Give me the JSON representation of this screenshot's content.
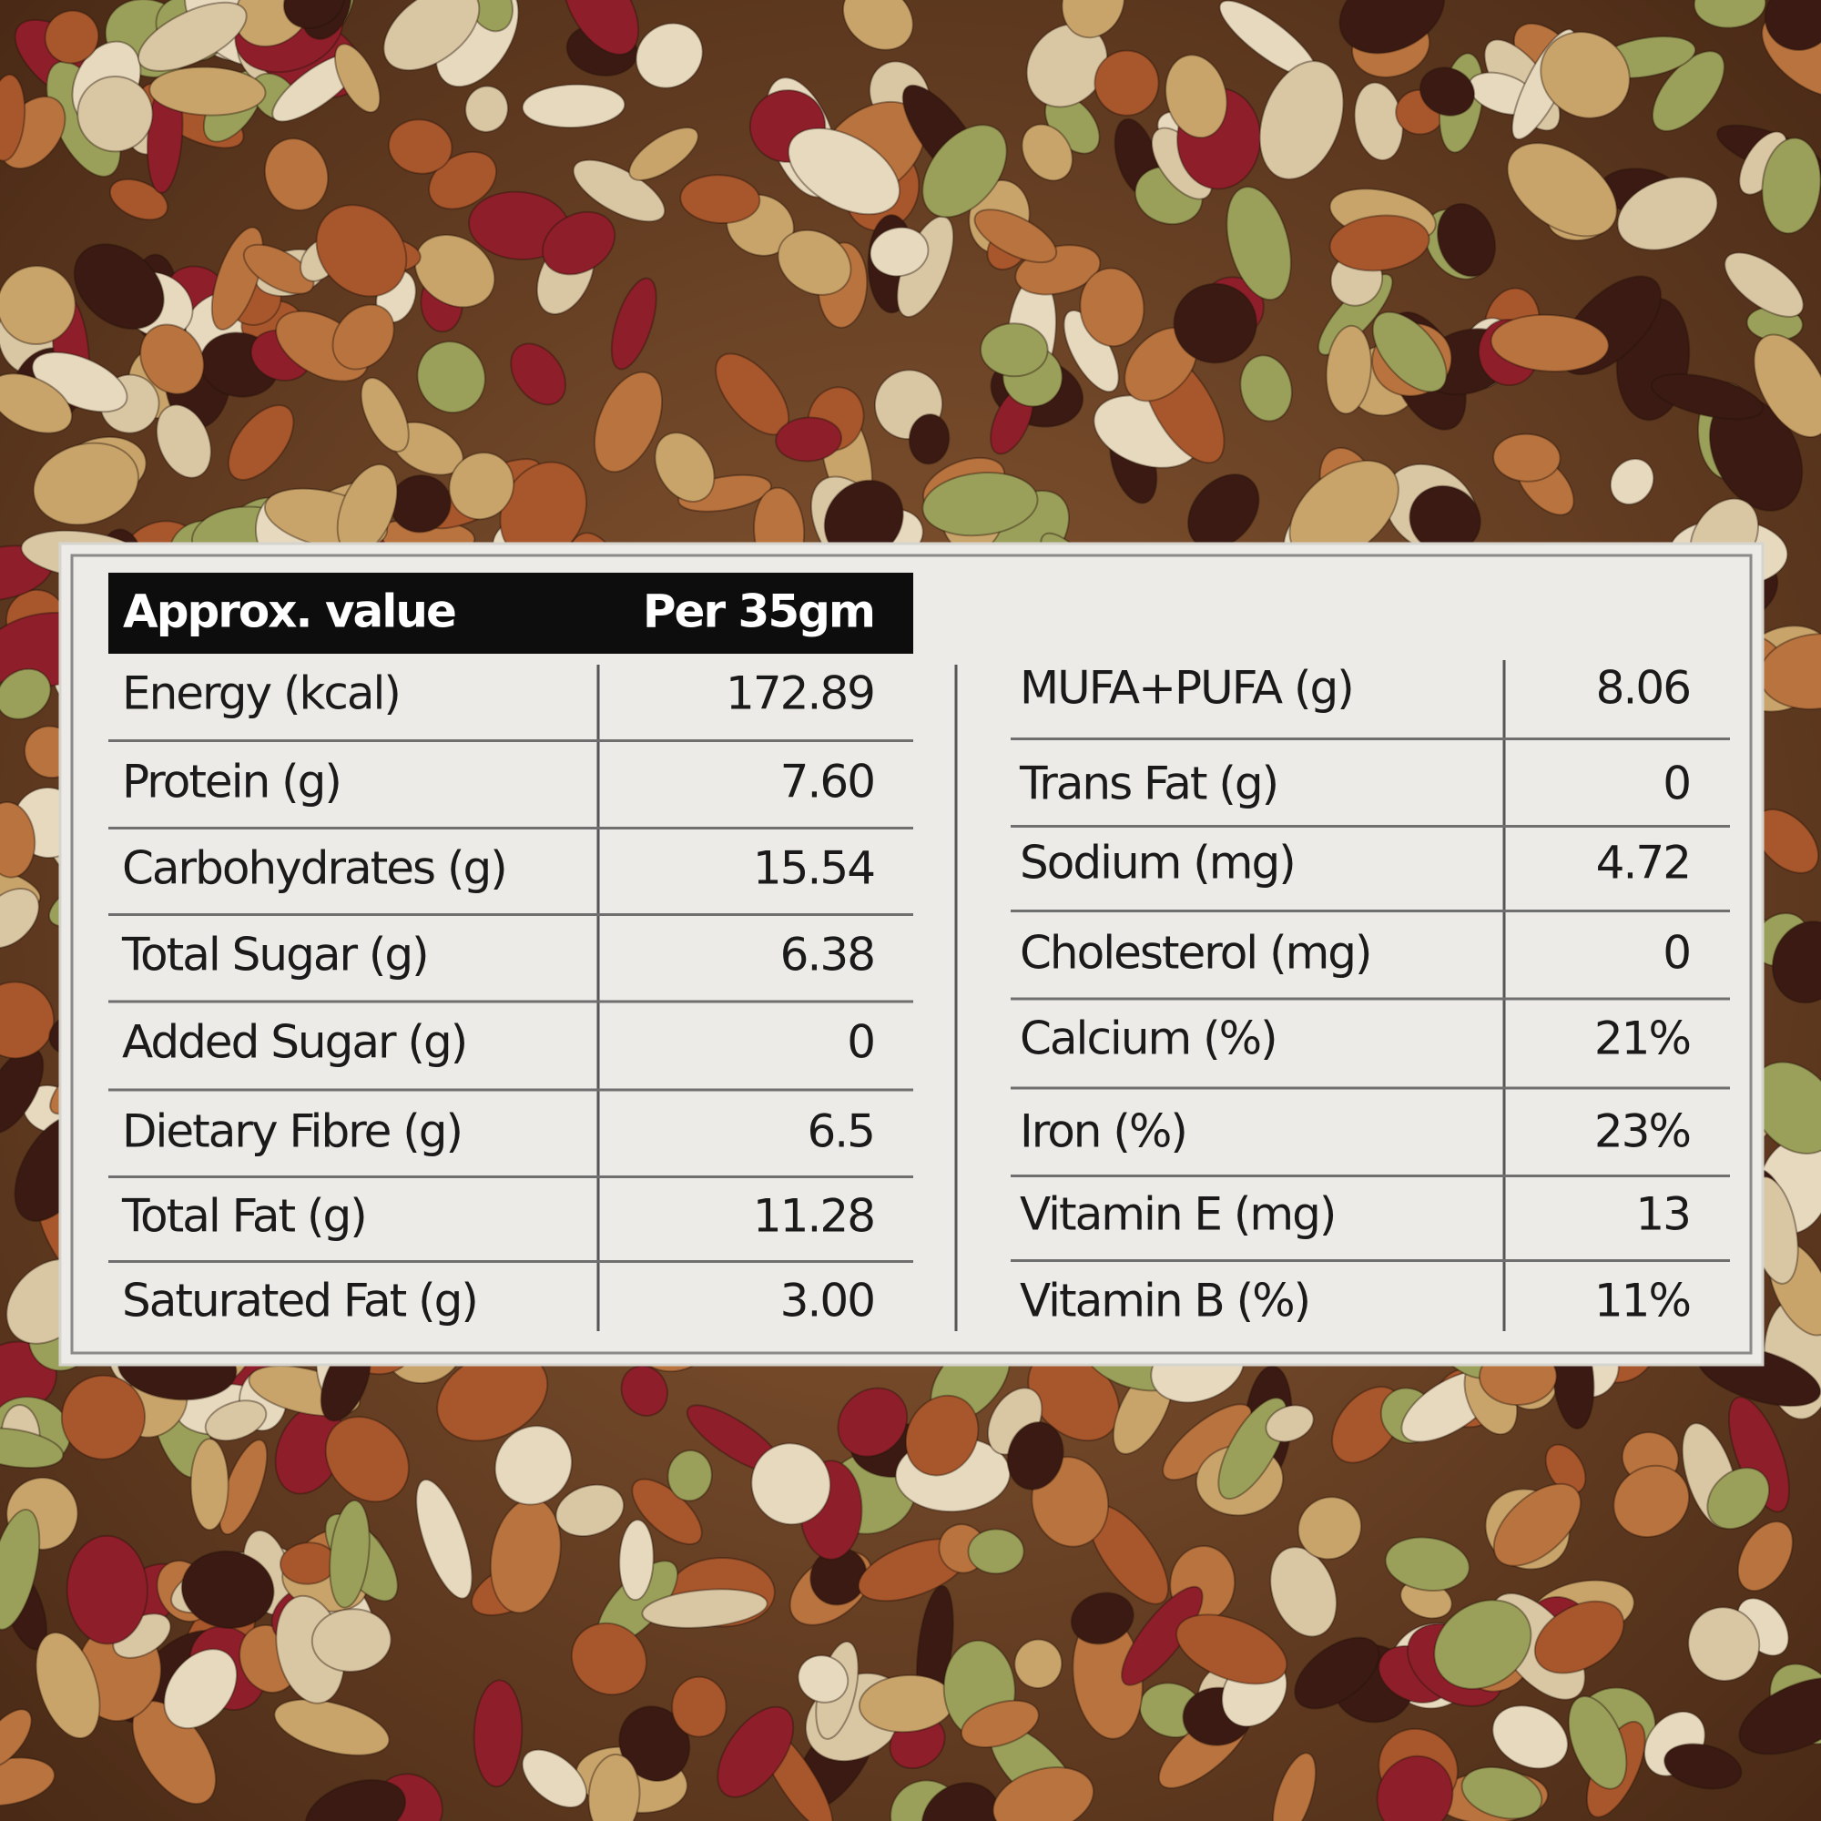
{
  "header": {
    "label": "Approx. value",
    "unit": "Per 35gm"
  },
  "left_rows": [
    [
      "Energy (kcal)",
      "172.89"
    ],
    [
      "Protein (g)",
      "7.60"
    ],
    [
      "Carbohydrates (g)",
      "15.54"
    ],
    [
      "Total Sugar (g)",
      "6.38"
    ],
    [
      "Added Sugar (g)",
      "0"
    ],
    [
      "Dietary Fibre (g)",
      "6.5"
    ],
    [
      "Total Fat (g)",
      "11.28"
    ],
    [
      "Saturated Fat (g)",
      "3.00"
    ]
  ],
  "right_rows": [
    [
      "MUFA+PUFA (g)",
      "8.06"
    ],
    [
      "Trans Fat (g)",
      "0"
    ],
    [
      "Sodium (mg)",
      "4.72"
    ],
    [
      "Cholesterol (mg)",
      "0"
    ],
    [
      "Calcium (%)",
      "21%"
    ],
    [
      "Iron (%)",
      "23%"
    ],
    [
      "Vitamin E (mg)",
      "13"
    ],
    [
      "Vitamin B (%)",
      "11%"
    ]
  ]
}
